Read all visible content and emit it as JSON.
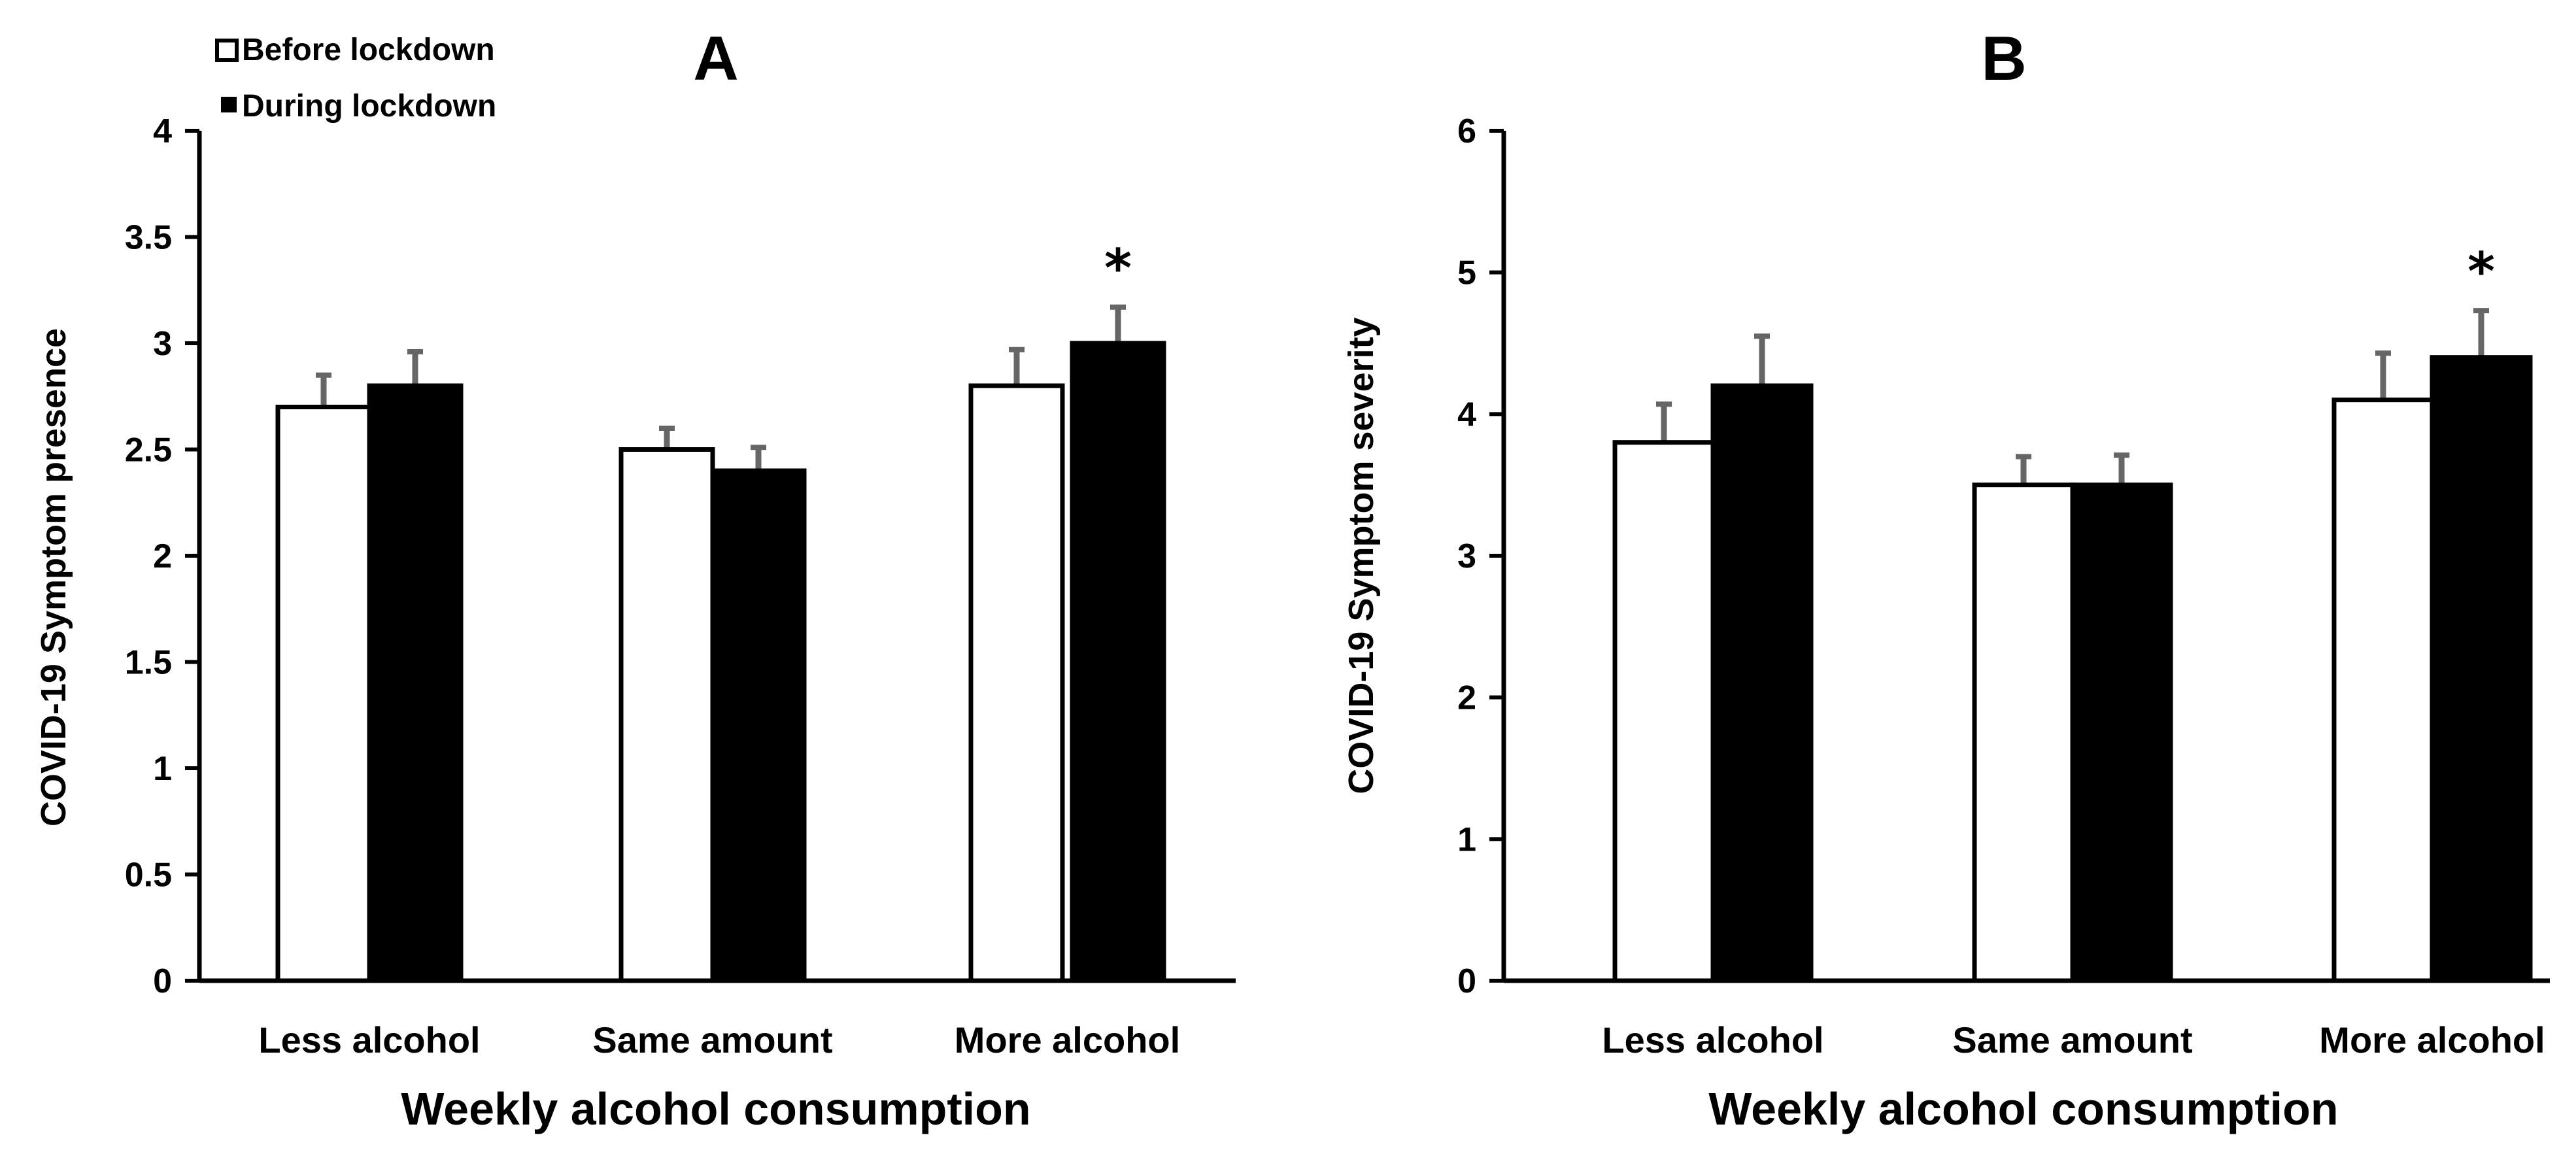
{
  "chart_data": [
    {
      "type": "bar",
      "panel": "A",
      "title": "A",
      "xlabel": "Weekly alcohol consumption",
      "ylabel": "COVID-19 Symptom presence",
      "ylim": [
        0,
        4
      ],
      "yticks": [
        "0",
        "0.5",
        "1",
        "1.5",
        "2",
        "2.5",
        "3",
        "3.5",
        "4"
      ],
      "categories": [
        "Less alcohol",
        "Same amount",
        "More alcohol"
      ],
      "series": [
        {
          "name": "Before lockdown",
          "color": "#ffffff",
          "values": [
            2.7,
            2.5,
            2.8
          ],
          "errors": [
            0.15,
            0.1,
            0.17
          ]
        },
        {
          "name": "During lockdown",
          "color": "#000000",
          "values": [
            2.8,
            2.4,
            3.0
          ],
          "errors": [
            0.16,
            0.11,
            0.17
          ]
        }
      ],
      "legend": [
        "Before lockdown",
        "During lockdown"
      ],
      "legend_position": "top-left",
      "annotations": [
        {
          "text": "*",
          "category": "More alcohol"
        }
      ]
    },
    {
      "type": "bar",
      "panel": "B",
      "title": "B",
      "xlabel": "Weekly alcohol consumption",
      "ylabel": "COVID-19 Symptom severity",
      "ylim": [
        0,
        6
      ],
      "yticks": [
        "0",
        "1",
        "2",
        "3",
        "4",
        "5",
        "6"
      ],
      "categories": [
        "Less alcohol",
        "Same amount",
        "More alcohol"
      ],
      "series": [
        {
          "name": "Before lockdown",
          "color": "#ffffff",
          "values": [
            3.8,
            3.5,
            4.1
          ],
          "errors": [
            0.27,
            0.2,
            0.33
          ]
        },
        {
          "name": "During lockdown",
          "color": "#000000",
          "values": [
            4.2,
            3.5,
            4.4
          ],
          "errors": [
            0.35,
            0.21,
            0.33
          ]
        }
      ],
      "annotations": [
        {
          "text": "*",
          "category": "More alcohol"
        }
      ]
    }
  ]
}
